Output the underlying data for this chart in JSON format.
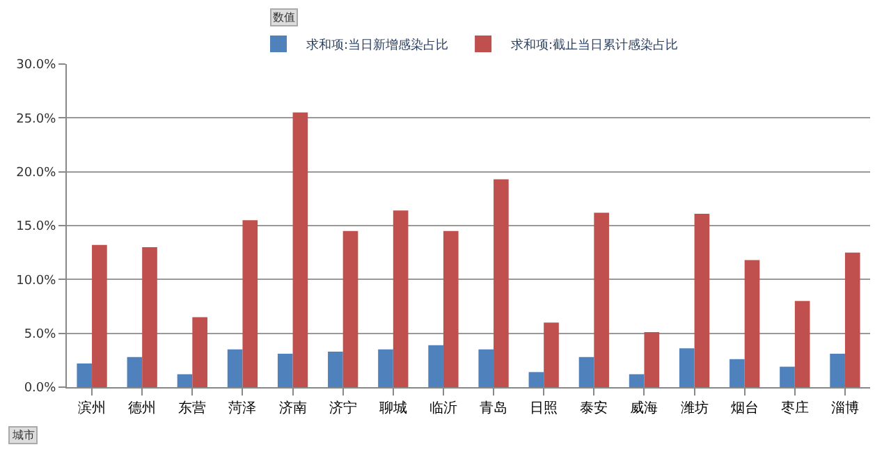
{
  "chart_data": {
    "type": "bar",
    "categories": [
      "滨州",
      "德州",
      "东营",
      "菏泽",
      "济南",
      "济宁",
      "聊城",
      "临沂",
      "青岛",
      "日照",
      "泰安",
      "威海",
      "潍坊",
      "烟台",
      "枣庄",
      "淄博"
    ],
    "series": [
      {
        "name": "求和项:当日新增感染占比",
        "color": "#4f81bd",
        "values": [
          2.2,
          2.8,
          1.2,
          3.5,
          3.1,
          3.3,
          3.5,
          3.9,
          3.5,
          1.4,
          2.8,
          1.2,
          3.6,
          2.6,
          1.9,
          3.1
        ]
      },
      {
        "name": "求和项:截止当日累计感染占比",
        "color": "#c0504d",
        "values": [
          13.2,
          13.0,
          6.5,
          15.5,
          25.5,
          14.5,
          16.4,
          14.5,
          19.3,
          6.0,
          16.2,
          5.1,
          16.1,
          11.8,
          8.0,
          12.5
        ]
      }
    ],
    "ylim": [
      0,
      30
    ],
    "yticks": [
      {
        "value": 0,
        "label": "0.0%"
      },
      {
        "value": 5,
        "label": "5.0%"
      },
      {
        "value": 10,
        "label": "10.0%"
      },
      {
        "value": 15,
        "label": "15.0%"
      },
      {
        "value": 20,
        "label": "20.0%"
      },
      {
        "value": 25,
        "label": "25.0%"
      },
      {
        "value": 30,
        "label": "30.0%"
      }
    ],
    "grid": "y",
    "legend": "top",
    "annotations": [
      "数值",
      "城市"
    ]
  }
}
